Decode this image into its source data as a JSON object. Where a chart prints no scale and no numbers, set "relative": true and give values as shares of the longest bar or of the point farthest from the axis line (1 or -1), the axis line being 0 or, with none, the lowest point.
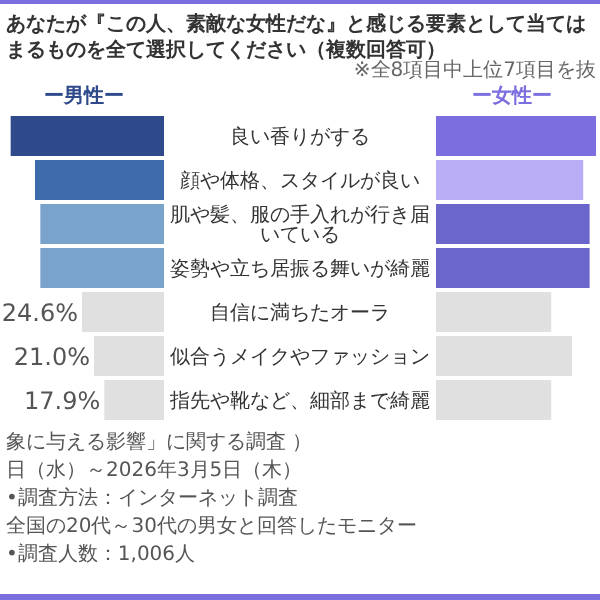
{
  "chart_data": [
    {
      "type": "bar",
      "orientation": "horizontal",
      "title": "あなたが『この人、素敵な女性だな』と感じる要素として当てはまるものを全て選択してください（複数回答可）",
      "categories": [
        "良い香りがする",
        "顔や体格、スタイルが良い",
        "肌や髪、服の手入れが行き届いている",
        "姿勢や立ち居振る舞いが綺麗",
        "自信に満ちたオーラ",
        "似合うメイクやファッション",
        "指先や靴など、細部まで綺麗"
      ],
      "xlim": [
        48,
        0
      ],
      "legend": "top",
      "series": [
        {
          "name": "ー男性ー",
          "color": "#2e4a8a",
          "colors": [
            "#2e4a8a",
            "#3d6aaa",
            "#7aa3cc",
            "#7aa3cc",
            "#e0e0e0",
            "#e0e0e0",
            "#e0e0e0"
          ],
          "values": [
            46.0,
            38.7,
            37.1,
            37.1,
            24.6,
            21.0,
            17.9
          ],
          "value_labels": [
            null,
            null,
            null,
            null,
            "24.6%",
            "21.0%",
            "17.9%"
          ]
        }
      ],
      "annotations": [
        "※全8項目中上位7項目を抜",
        "象に与える影響」に関する調査 ）",
        "日（水）～2026年3月5日（木）",
        "•調査方法：インターネット調査",
        "全国の20代～30代の男女と回答したモニター",
        "•調査人数：1,006人"
      ]
    },
    {
      "type": "bar",
      "orientation": "horizontal",
      "categories": [
        null,
        null,
        null,
        null,
        null,
        null,
        null
      ],
      "relative": true,
      "legend": "top",
      "series": [
        {
          "name": "ー女性ー",
          "color": "#7b6fe0",
          "colors": [
            "#7b6fe0",
            "#b9aef5",
            "#6a66cc",
            "#6a66cc",
            "#e0e0e0",
            "#e0e0e0",
            "#e0e0e0"
          ],
          "values": [
            1,
            0.92,
            0.96,
            0.96,
            0.72,
            0.85,
            0.72
          ]
        }
      ]
    }
  ]
}
